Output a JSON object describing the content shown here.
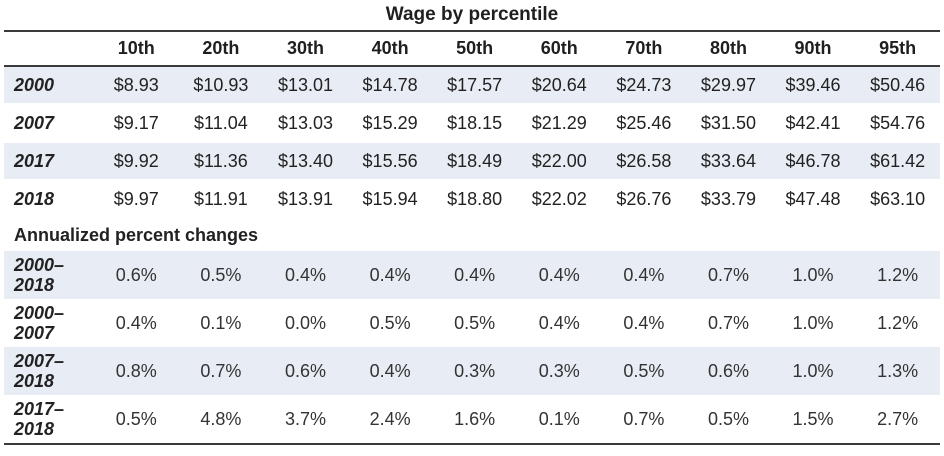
{
  "chart_data": {
    "type": "table",
    "title": "Wage by percentile",
    "columns": [
      "10th",
      "20th",
      "30th",
      "40th",
      "50th",
      "60th",
      "70th",
      "80th",
      "90th",
      "95th"
    ],
    "wage_rows": [
      {
        "label": "2000",
        "values": [
          "$8.93",
          "$10.93",
          "$13.01",
          "$14.78",
          "$17.57",
          "$20.64",
          "$24.73",
          "$29.97",
          "$39.46",
          "$50.46"
        ]
      },
      {
        "label": "2007",
        "values": [
          "$9.17",
          "$11.04",
          "$13.03",
          "$15.29",
          "$18.15",
          "$21.29",
          "$25.46",
          "$31.50",
          "$42.41",
          "$54.76"
        ]
      },
      {
        "label": "2017",
        "values": [
          "$9.92",
          "$11.36",
          "$13.40",
          "$15.56",
          "$18.49",
          "$22.00",
          "$26.58",
          "$33.64",
          "$46.78",
          "$61.42"
        ]
      },
      {
        "label": "2018",
        "values": [
          "$9.97",
          "$11.91",
          "$13.91",
          "$15.94",
          "$18.80",
          "$22.02",
          "$26.76",
          "$33.79",
          "$47.48",
          "$63.10"
        ]
      }
    ],
    "section_label": "Annualized percent changes",
    "change_rows": [
      {
        "label_a": "2000–",
        "label_b": "2018",
        "values": [
          "0.6%",
          "0.5%",
          "0.4%",
          "0.4%",
          "0.4%",
          "0.4%",
          "0.4%",
          "0.7%",
          "1.0%",
          "1.2%"
        ]
      },
      {
        "label_a": "2000–",
        "label_b": "2007",
        "values": [
          "0.4%",
          "0.1%",
          "0.0%",
          "0.5%",
          "0.5%",
          "0.4%",
          "0.4%",
          "0.7%",
          "1.0%",
          "1.2%"
        ]
      },
      {
        "label_a": "2007–",
        "label_b": "2018",
        "values": [
          "0.8%",
          "0.7%",
          "0.6%",
          "0.4%",
          "0.3%",
          "0.3%",
          "0.5%",
          "0.6%",
          "1.0%",
          "1.3%"
        ]
      },
      {
        "label_a": "2017–",
        "label_b": "2018",
        "values": [
          "0.5%",
          "4.8%",
          "3.7%",
          "2.4%",
          "1.6%",
          "0.1%",
          "0.7%",
          "0.5%",
          "1.5%",
          "2.7%"
        ]
      }
    ],
    "colors": {
      "row_shade": "#e8edf5",
      "rule": "#3a3a3a"
    }
  }
}
